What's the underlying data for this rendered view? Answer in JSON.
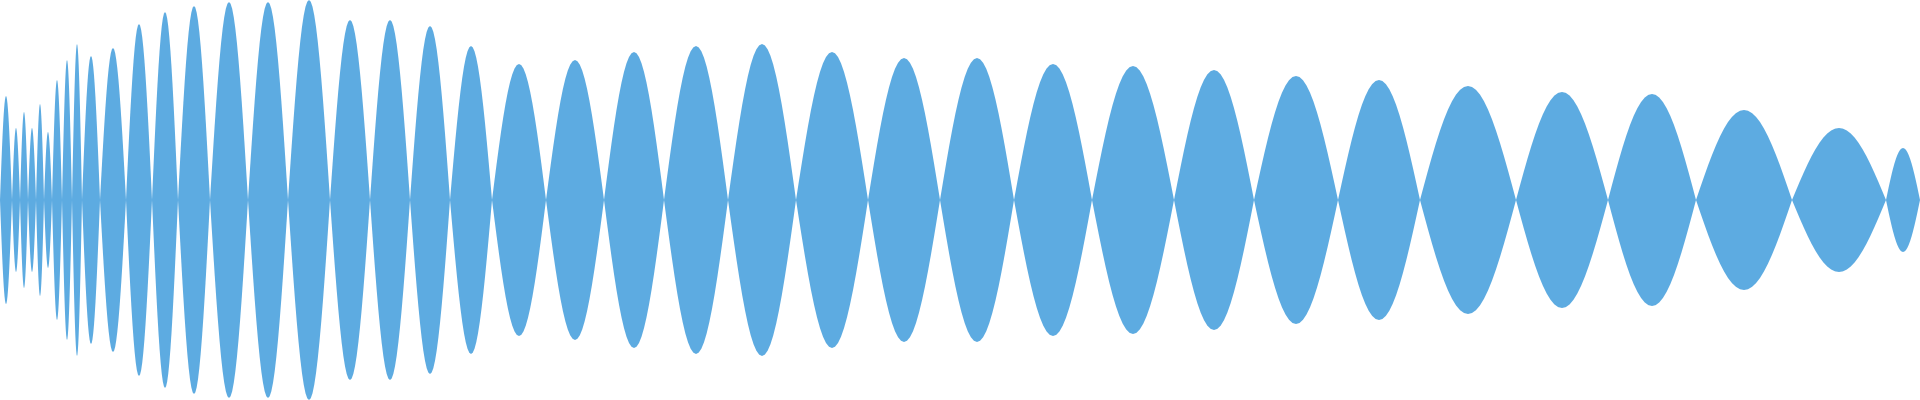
{
  "waveform": {
    "fill_color": "#5dabe1",
    "background_color": "#ffffff",
    "lobes": [
      {
        "amplitude": 0.52
      },
      {
        "amplitude": 0.36
      },
      {
        "amplitude": 0.44
      },
      {
        "amplitude": 0.36
      },
      {
        "amplitude": 0.48
      },
      {
        "amplitude": 0.34
      },
      {
        "amplitude": 0.6
      },
      {
        "amplitude": 0.7
      },
      {
        "amplitude": 0.78
      },
      {
        "amplitude": 0.72
      },
      {
        "amplitude": 0.76
      },
      {
        "amplitude": 0.88
      },
      {
        "amplitude": 0.94
      },
      {
        "amplitude": 0.97
      },
      {
        "amplitude": 0.99
      },
      {
        "amplitude": 0.99
      },
      {
        "amplitude": 1.0
      },
      {
        "amplitude": 0.9
      },
      {
        "amplitude": 0.9
      },
      {
        "amplitude": 0.87
      },
      {
        "amplitude": 0.77
      },
      {
        "amplitude": 0.68
      },
      {
        "amplitude": 0.7
      },
      {
        "amplitude": 0.74
      },
      {
        "amplitude": 0.77
      },
      {
        "amplitude": 0.78
      },
      {
        "amplitude": 0.74
      },
      {
        "amplitude": 0.71
      },
      {
        "amplitude": 0.71
      },
      {
        "amplitude": 0.68
      },
      {
        "amplitude": 0.67
      },
      {
        "amplitude": 0.65
      },
      {
        "amplitude": 0.62
      },
      {
        "amplitude": 0.6
      },
      {
        "amplitude": 0.57
      },
      {
        "amplitude": 0.54
      },
      {
        "amplitude": 0.53
      },
      {
        "amplitude": 0.45
      },
      {
        "amplitude": 0.36
      },
      {
        "amplitude": 0.26
      }
    ]
  }
}
